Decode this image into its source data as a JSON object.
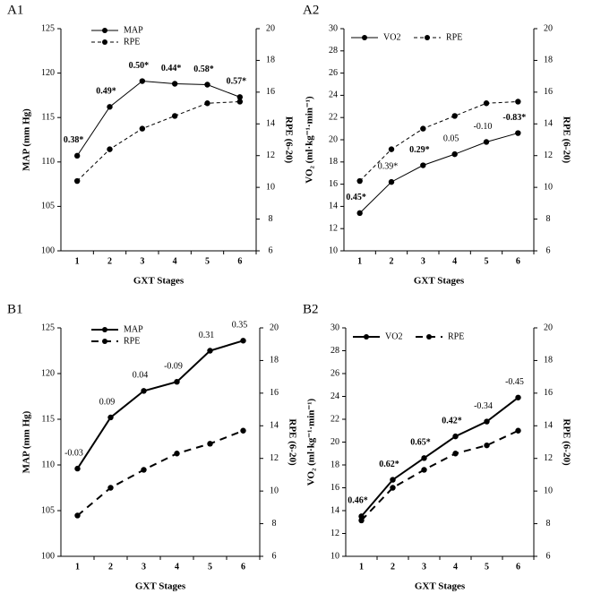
{
  "chart_data": [
    {
      "type": "line",
      "title": "A1",
      "x_label": "GXT Stages",
      "y_label": "MAP (mm Hg)",
      "y2_label": "RPE (6-20)",
      "categories": [
        "1",
        "2",
        "3",
        "4",
        "5",
        "6"
      ],
      "ylim": [
        100,
        125
      ],
      "yticks": [
        100,
        105,
        110,
        115,
        120,
        125
      ],
      "y2lim": [
        6,
        20
      ],
      "y2ticks": [
        6,
        8,
        10,
        12,
        14,
        16,
        18,
        20
      ],
      "legend": "upper left",
      "legend_orientation": "vertical",
      "line_width": 1,
      "series": [
        {
          "name": "MAP",
          "color": "#000000",
          "line_style": "solid",
          "values": [
            110.7,
            116.2,
            119.1,
            118.8,
            118.7,
            117.3
          ],
          "point_labels": [
            "0.38*",
            "0.49*",
            "0.50*",
            "0.44*",
            "0.58*",
            "0.57*"
          ],
          "point_labels_bold": [
            true,
            true,
            true,
            true,
            true,
            true
          ]
        },
        {
          "name": "RPE",
          "color": "#000000",
          "line_style": "dashed",
          "axis": "y2",
          "values": [
            10.4,
            12.4,
            13.7,
            14.5,
            15.3,
            15.4
          ]
        }
      ]
    },
    {
      "type": "line",
      "title": "A2",
      "x_label": "GXT Stages",
      "y_label": "VO₂ (ml·kg⁻¹·min⁻¹)",
      "y2_label": "RPE (6-20)",
      "categories": [
        "1",
        "2",
        "3",
        "4",
        "5",
        "6"
      ],
      "ylim": [
        10,
        30
      ],
      "yticks": [
        10,
        12,
        14,
        16,
        18,
        20,
        22,
        24,
        26,
        28,
        30
      ],
      "y2lim": [
        6,
        20
      ],
      "y2ticks": [
        6,
        8,
        10,
        12,
        14,
        16,
        18,
        20
      ],
      "legend": "upper left",
      "legend_orientation": "horizontal",
      "line_width": 1,
      "series": [
        {
          "name": "VO2",
          "color": "#000000",
          "line_style": "solid",
          "values": [
            13.4,
            16.2,
            17.7,
            18.7,
            19.8,
            20.6
          ],
          "point_labels": [
            "0.45*",
            "0.39*",
            "0.29*",
            "0.05",
            "-0.10",
            "-0.83*"
          ],
          "point_labels_bold": [
            true,
            false,
            true,
            false,
            false,
            true
          ]
        },
        {
          "name": "RPE",
          "color": "#000000",
          "line_style": "dashed",
          "axis": "y2",
          "values": [
            10.4,
            12.4,
            13.7,
            14.5,
            15.3,
            15.4
          ]
        }
      ]
    },
    {
      "type": "line",
      "title": "B1",
      "x_label": "GXT Stages",
      "y_label": "MAP (mm Hg)",
      "y2_label": "RPE (6-20)",
      "categories": [
        "1",
        "2",
        "3",
        "4",
        "5",
        "6"
      ],
      "ylim": [
        100,
        125
      ],
      "yticks": [
        100,
        105,
        110,
        115,
        120,
        125
      ],
      "y2lim": [
        6,
        20
      ],
      "y2ticks": [
        6,
        8,
        10,
        12,
        14,
        16,
        18,
        20
      ],
      "legend": "upper left",
      "legend_orientation": "vertical",
      "line_width": 2,
      "series": [
        {
          "name": "MAP",
          "color": "#000000",
          "line_style": "solid",
          "values": [
            109.6,
            115.2,
            118.1,
            119.1,
            122.5,
            123.6
          ],
          "point_labels": [
            "-0.03",
            "0.09",
            "0.04",
            "-0.09",
            "0.31",
            "0.35"
          ],
          "point_labels_bold": [
            false,
            false,
            false,
            false,
            false,
            false
          ]
        },
        {
          "name": "RPE",
          "color": "#000000",
          "line_style": "dashed",
          "axis": "y2",
          "values": [
            8.5,
            10.2,
            11.3,
            12.3,
            12.9,
            13.7
          ]
        }
      ]
    },
    {
      "type": "line",
      "title": "B2",
      "x_label": "GXT Stages",
      "y_label": "VO₂ (ml·kg⁻¹·min⁻¹)",
      "y2_label": "RPE (6-20)",
      "categories": [
        "1",
        "2",
        "3",
        "4",
        "5",
        "6"
      ],
      "ylim": [
        10,
        30
      ],
      "yticks": [
        10,
        12,
        14,
        16,
        18,
        20,
        22,
        24,
        26,
        28,
        30
      ],
      "y2lim": [
        6,
        20
      ],
      "y2ticks": [
        6,
        8,
        10,
        12,
        14,
        16,
        18,
        20
      ],
      "legend": "upper left",
      "legend_orientation": "horizontal",
      "line_width": 2,
      "series": [
        {
          "name": "VO2",
          "color": "#000000",
          "line_style": "solid",
          "values": [
            13.5,
            16.7,
            18.6,
            20.5,
            21.8,
            23.9
          ],
          "point_labels": [
            "0.46*",
            "0.62*",
            "0.65*",
            "0.42*",
            "-0.34",
            "-0.45"
          ],
          "point_labels_bold": [
            true,
            true,
            true,
            true,
            false,
            false
          ]
        },
        {
          "name": "RPE",
          "color": "#000000",
          "line_style": "dashed",
          "axis": "y2",
          "values": [
            8.2,
            10.2,
            11.3,
            12.3,
            12.8,
            13.7
          ]
        }
      ]
    }
  ]
}
